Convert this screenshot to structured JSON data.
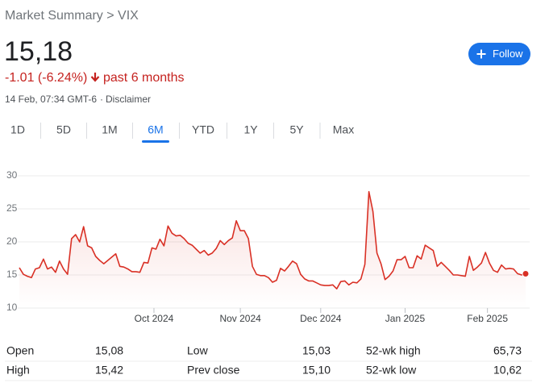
{
  "header": {
    "breadcrumb": "Market Summary > VIX",
    "price": "15,18",
    "change": "-1.01 (-6.24%)",
    "period": "past 6 months",
    "timestamp": "14 Feb, 07:34 GMT-6",
    "disclaimer": "Disclaimer",
    "follow": "Follow"
  },
  "tabs": {
    "items": [
      "1D",
      "5D",
      "1M",
      "6M",
      "YTD",
      "1Y",
      "5Y",
      "Max"
    ],
    "selected": 3
  },
  "chart_data": {
    "type": "line",
    "color": "#d93025",
    "grid": true,
    "values": [
      16.1,
      15.1,
      14.8,
      14.6,
      15.9,
      16.1,
      17.4,
      15.9,
      16.2,
      15.4,
      17.1,
      15.9,
      15.1,
      20.5,
      21.1,
      20.0,
      22.3,
      19.4,
      19.1,
      17.8,
      17.2,
      16.7,
      17.2,
      17.7,
      18.2,
      16.3,
      16.2,
      15.9,
      15.5,
      15.5,
      15.4,
      16.9,
      16.8,
      19.1,
      18.9,
      20.4,
      19.4,
      22.4,
      21.3,
      20.9,
      21.0,
      20.5,
      19.8,
      19.5,
      18.9,
      18.3,
      18.7,
      18.0,
      18.3,
      19.0,
      20.2,
      19.6,
      20.2,
      20.6,
      23.2,
      21.7,
      21.7,
      20.5,
      16.3,
      15.1,
      14.9,
      14.9,
      14.6,
      13.9,
      14.2,
      16.0,
      15.6,
      16.3,
      17.1,
      16.7,
      15.1,
      14.4,
      14.1,
      14.1,
      13.8,
      13.5,
      13.4,
      13.4,
      13.5,
      12.9,
      14.0,
      14.1,
      13.5,
      13.9,
      13.8,
      14.4,
      16.6,
      27.6,
      24.6,
      18.3,
      16.7,
      14.3,
      14.8,
      15.6,
      17.3,
      17.3,
      17.8,
      16.1,
      16.1,
      17.9,
      17.4,
      19.5,
      19.1,
      18.7,
      16.3,
      16.9,
      16.3,
      15.7,
      15.0,
      15.0,
      14.9,
      14.8,
      17.8,
      15.7,
      16.2,
      16.8,
      18.4,
      16.8,
      15.7,
      15.4,
      16.5,
      15.9,
      16.0,
      15.9,
      15.2,
      15.0,
      15.18
    ],
    "xlim": [
      0,
      126
    ],
    "xticks": [
      {
        "value": 33.5,
        "label": "Oct 2024"
      },
      {
        "value": 55,
        "label": "Nov 2024"
      },
      {
        "value": 75,
        "label": "Dec 2024"
      },
      {
        "value": 96,
        "label": "Jan 2025"
      },
      {
        "value": 116.5,
        "label": "Feb 2025"
      }
    ],
    "ylim": [
      10,
      30
    ],
    "yticks": [
      10,
      15,
      20,
      25,
      30
    ]
  },
  "stats": [
    [
      {
        "label": "Open",
        "value": "15,08"
      },
      {
        "label": "Low",
        "value": "15,03"
      },
      {
        "label": "52-wk high",
        "value": "65,73"
      }
    ],
    [
      {
        "label": "High",
        "value": "15,42"
      },
      {
        "label": "Prev close",
        "value": "15,10"
      },
      {
        "label": "52-wk low",
        "value": "10,62"
      }
    ]
  ]
}
